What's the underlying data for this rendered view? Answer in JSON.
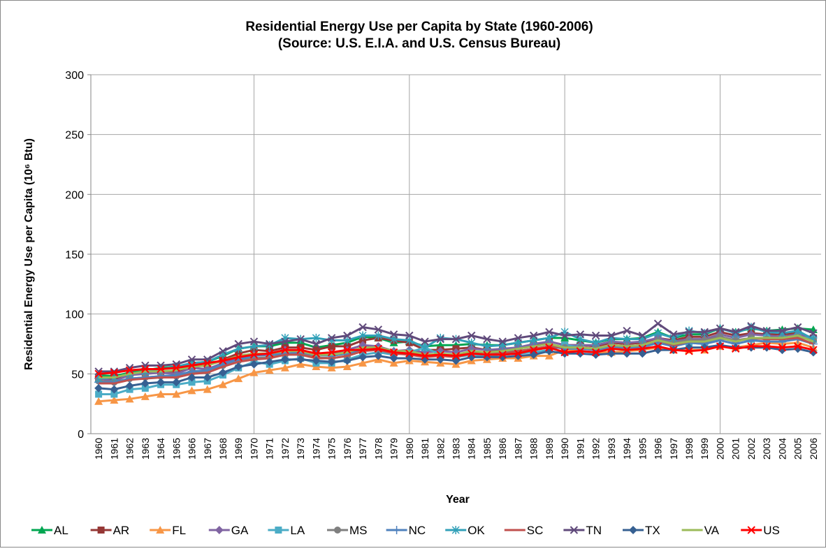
{
  "chart_data": {
    "type": "line",
    "title": [
      "Residential Energy Use per Capita by State (1960-2006)",
      "(Source: U.S. E.I.A. and U.S. Census Bureau)"
    ],
    "xlabel": "Year",
    "ylabel": "Residential Energy Use per Capita (10⁶ Btu)",
    "categories": [
      "1960",
      "1961",
      "1962",
      "1963",
      "1964",
      "1965",
      "1966",
      "1967",
      "1968",
      "1969",
      "1970",
      "1971",
      "1972",
      "1973",
      "1974",
      "1975",
      "1976",
      "1977",
      "1978",
      "1979",
      "1980",
      "1981",
      "1982",
      "1983",
      "1984",
      "1985",
      "1986",
      "1987",
      "1988",
      "1989",
      "1990",
      "1991",
      "1992",
      "1993",
      "1994",
      "1995",
      "1996",
      "1997",
      "1998",
      "1999",
      "2000",
      "2001",
      "2002",
      "2003",
      "2004",
      "2005",
      "2006"
    ],
    "ylim": [
      0,
      300
    ],
    "yticks": [
      0,
      50,
      100,
      150,
      200,
      250,
      300
    ],
    "grid": true,
    "xgrid_interval": 10,
    "legend": "bottom",
    "series": [
      {
        "name": "AL",
        "color": "#00a651",
        "marker": "triangle",
        "values": [
          49,
          48,
          51,
          53,
          55,
          56,
          59,
          60,
          65,
          71,
          73,
          73,
          76,
          76,
          72,
          74,
          76,
          81,
          80,
          76,
          77,
          73,
          74,
          74,
          75,
          74,
          74,
          76,
          78,
          80,
          80,
          78,
          76,
          79,
          79,
          80,
          85,
          80,
          83,
          83,
          88,
          85,
          88,
          86,
          87,
          88,
          87
        ]
      },
      {
        "name": "AR",
        "color": "#953735",
        "marker": "square",
        "values": [
          46,
          46,
          49,
          51,
          52,
          52,
          56,
          57,
          62,
          67,
          70,
          69,
          72,
          72,
          70,
          73,
          73,
          78,
          80,
          78,
          76,
          70,
          70,
          71,
          72,
          70,
          70,
          72,
          74,
          77,
          74,
          74,
          73,
          76,
          75,
          76,
          80,
          78,
          81,
          81,
          85,
          82,
          84,
          83,
          83,
          84,
          80
        ]
      },
      {
        "name": "FL",
        "color": "#f79646",
        "marker": "triangle",
        "values": [
          27,
          28,
          29,
          31,
          33,
          33,
          36,
          37,
          41,
          46,
          51,
          53,
          55,
          58,
          56,
          55,
          56,
          59,
          62,
          59,
          61,
          60,
          59,
          58,
          61,
          62,
          63,
          63,
          65,
          65,
          70,
          69,
          68,
          68,
          69,
          70,
          72,
          70,
          70,
          70,
          73,
          72,
          74,
          76,
          75,
          76,
          72
        ]
      },
      {
        "name": "GA",
        "color": "#8064a2",
        "marker": "diamond",
        "values": [
          46,
          44,
          49,
          50,
          51,
          50,
          55,
          54,
          59,
          63,
          66,
          67,
          70,
          69,
          66,
          67,
          70,
          74,
          73,
          69,
          70,
          68,
          69,
          68,
          71,
          70,
          71,
          72,
          75,
          77,
          74,
          74,
          74,
          77,
          76,
          77,
          80,
          77,
          79,
          79,
          83,
          80,
          83,
          82,
          81,
          83,
          80
        ]
      },
      {
        "name": "LA",
        "color": "#4bacc6",
        "marker": "square",
        "values": [
          33,
          33,
          37,
          38,
          41,
          41,
          43,
          44,
          49,
          55,
          60,
          58,
          61,
          63,
          59,
          59,
          62,
          66,
          68,
          66,
          68,
          72,
          66,
          64,
          66,
          65,
          66,
          67,
          68,
          70,
          74,
          72,
          70,
          72,
          71,
          72,
          76,
          73,
          76,
          75,
          80,
          78,
          79,
          80,
          79,
          81,
          79
        ]
      },
      {
        "name": "MS",
        "color": "#7f7f7f",
        "marker": "circle",
        "values": [
          44,
          43,
          46,
          47,
          48,
          48,
          51,
          52,
          57,
          61,
          63,
          64,
          66,
          67,
          64,
          63,
          65,
          70,
          70,
          67,
          67,
          65,
          66,
          65,
          68,
          67,
          68,
          69,
          70,
          72,
          72,
          72,
          71,
          74,
          73,
          74,
          78,
          76,
          78,
          78,
          81,
          78,
          80,
          79,
          79,
          81,
          78
        ]
      },
      {
        "name": "NC",
        "color": "#4f81bd",
        "marker": "plus",
        "values": [
          43,
          43,
          46,
          47,
          48,
          49,
          52,
          53,
          58,
          62,
          65,
          66,
          67,
          68,
          66,
          65,
          67,
          71,
          71,
          69,
          69,
          65,
          66,
          66,
          68,
          67,
          68,
          69,
          71,
          73,
          71,
          71,
          70,
          73,
          72,
          73,
          76,
          73,
          76,
          75,
          78,
          75,
          78,
          77,
          77,
          79,
          75
        ]
      },
      {
        "name": "OK",
        "color": "#31a0b8",
        "marker": "asterisk",
        "values": [
          46,
          47,
          50,
          52,
          54,
          56,
          59,
          60,
          66,
          71,
          73,
          74,
          80,
          79,
          80,
          78,
          78,
          82,
          82,
          79,
          78,
          72,
          80,
          79,
          76,
          73,
          74,
          76,
          78,
          80,
          85,
          79,
          76,
          80,
          79,
          79,
          84,
          80,
          86,
          84,
          88,
          84,
          89,
          85,
          84,
          86,
          79
        ]
      },
      {
        "name": "SC",
        "color": "#c0504d",
        "marker": "none",
        "values": [
          42,
          42,
          45,
          46,
          47,
          47,
          50,
          51,
          56,
          60,
          62,
          63,
          66,
          66,
          63,
          63,
          65,
          69,
          70,
          67,
          66,
          64,
          65,
          64,
          67,
          67,
          67,
          69,
          71,
          73,
          72,
          72,
          71,
          74,
          73,
          74,
          78,
          74,
          77,
          77,
          80,
          77,
          80,
          79,
          79,
          80,
          75
        ]
      },
      {
        "name": "TN",
        "color": "#604a7b",
        "marker": "x",
        "values": [
          52,
          52,
          55,
          57,
          57,
          58,
          62,
          62,
          69,
          75,
          77,
          75,
          77,
          79,
          75,
          80,
          82,
          89,
          87,
          83,
          82,
          77,
          79,
          79,
          82,
          79,
          77,
          80,
          82,
          85,
          82,
          83,
          82,
          82,
          86,
          82,
          92,
          83,
          85,
          85,
          88,
          85,
          90,
          86,
          86,
          89,
          84
        ]
      },
      {
        "name": "TX",
        "color": "#366092",
        "marker": "diamond",
        "values": [
          38,
          37,
          40,
          42,
          43,
          43,
          47,
          47,
          51,
          56,
          58,
          60,
          62,
          62,
          61,
          60,
          61,
          64,
          65,
          63,
          63,
          62,
          62,
          61,
          64,
          64,
          64,
          65,
          66,
          69,
          67,
          67,
          66,
          67,
          67,
          67,
          70,
          70,
          72,
          72,
          74,
          72,
          72,
          72,
          70,
          71,
          68
        ]
      },
      {
        "name": "VA",
        "color": "#9bbb59",
        "marker": "none",
        "values": [
          47,
          47,
          50,
          52,
          52,
          53,
          56,
          57,
          61,
          65,
          67,
          67,
          69,
          69,
          66,
          66,
          68,
          72,
          72,
          69,
          69,
          66,
          67,
          66,
          69,
          68,
          69,
          71,
          73,
          75,
          72,
          72,
          71,
          74,
          73,
          74,
          78,
          75,
          77,
          77,
          80,
          77,
          80,
          80,
          80,
          82,
          77
        ]
      },
      {
        "name": "US",
        "color": "#ff0000",
        "marker": "x",
        "values": [
          50,
          51,
          53,
          54,
          54,
          55,
          57,
          59,
          61,
          64,
          66,
          67,
          70,
          70,
          67,
          68,
          70,
          70,
          71,
          68,
          67,
          65,
          66,
          65,
          67,
          66,
          66,
          67,
          70,
          72,
          68,
          69,
          68,
          71,
          70,
          71,
          73,
          70,
          69,
          70,
          73,
          71,
          73,
          73,
          72,
          73,
          70
        ]
      }
    ]
  }
}
